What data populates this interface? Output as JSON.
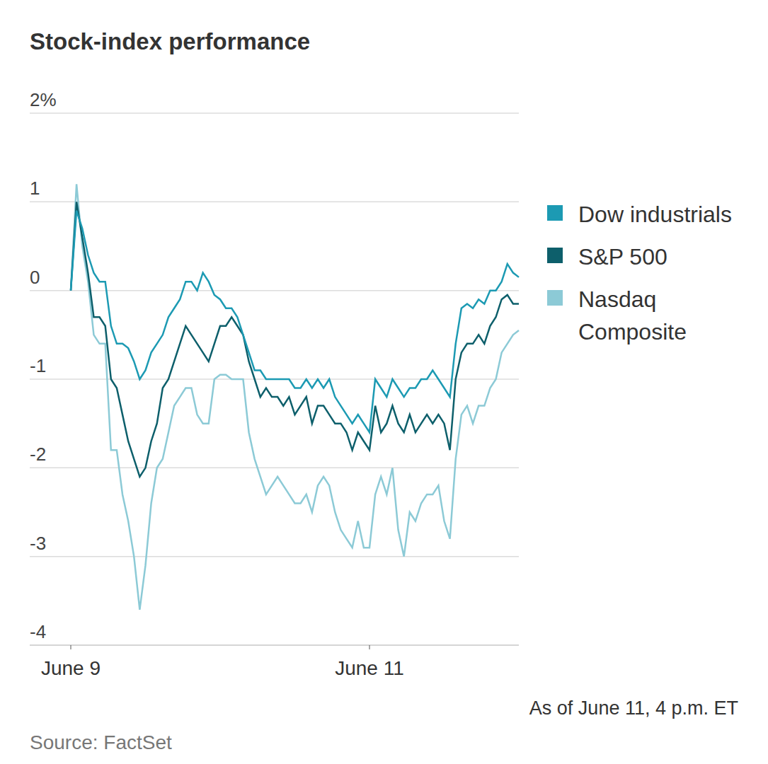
{
  "chart_data": {
    "type": "line",
    "title": "Stock-index performance",
    "note": "As of June 11, 4 p.m. ET",
    "source": "Source: FactSet",
    "categories": [
      "June 9",
      null,
      null,
      null,
      null,
      null,
      null,
      null,
      null,
      null,
      null,
      null,
      null,
      null,
      null,
      null,
      null,
      null,
      null,
      null,
      null,
      null,
      null,
      null,
      null,
      null,
      null,
      null,
      null,
      null,
      null,
      null,
      null,
      null,
      null,
      null,
      null,
      null,
      null,
      null,
      null,
      null,
      null,
      null,
      null,
      null,
      null,
      null,
      null,
      null,
      null,
      null,
      "June 11",
      null,
      null,
      null,
      null,
      null,
      null,
      null,
      null,
      null,
      null,
      null,
      null,
      null,
      null,
      null,
      null,
      null,
      null,
      null,
      null,
      null,
      null,
      null,
      null,
      null,
      null
    ],
    "series": [
      {
        "name": "Dow industrials",
        "color": "#1c9ab3",
        "values": [
          0,
          0.9,
          0.7,
          0.4,
          0.2,
          0.1,
          0.1,
          -0.4,
          -0.6,
          -0.6,
          -0.65,
          -0.8,
          -1.0,
          -0.9,
          -0.7,
          -0.6,
          -0.5,
          -0.3,
          -0.2,
          -0.1,
          0.1,
          0.1,
          0.0,
          0.2,
          0.1,
          -0.05,
          -0.1,
          -0.2,
          -0.2,
          -0.3,
          -0.5,
          -0.7,
          -0.9,
          -0.9,
          -1.0,
          -1.0,
          -1.0,
          -1.0,
          -1.0,
          -1.1,
          -1.1,
          -1.0,
          -1.1,
          -1.0,
          -1.1,
          -1.0,
          -1.2,
          -1.3,
          -1.4,
          -1.5,
          -1.4,
          -1.5,
          -1.6,
          -1.0,
          -1.1,
          -1.2,
          -1.0,
          -1.1,
          -1.2,
          -1.1,
          -1.1,
          -1.0,
          -1.0,
          -0.9,
          -1.0,
          -1.1,
          -1.2,
          -0.6,
          -0.2,
          -0.15,
          -0.2,
          -0.1,
          -0.15,
          0.0,
          0.0,
          0.1,
          0.3,
          0.2,
          0.15
        ]
      },
      {
        "name": "S&P 500",
        "color": "#0d5f6b",
        "values": [
          0,
          1.0,
          0.6,
          0.2,
          -0.3,
          -0.3,
          -0.4,
          -1.0,
          -1.1,
          -1.4,
          -1.7,
          -1.9,
          -2.1,
          -2.0,
          -1.7,
          -1.5,
          -1.1,
          -1.0,
          -0.8,
          -0.6,
          -0.4,
          -0.5,
          -0.6,
          -0.7,
          -0.8,
          -0.6,
          -0.4,
          -0.4,
          -0.3,
          -0.4,
          -0.5,
          -0.8,
          -1.0,
          -1.2,
          -1.1,
          -1.2,
          -1.2,
          -1.3,
          -1.2,
          -1.4,
          -1.3,
          -1.2,
          -1.5,
          -1.3,
          -1.3,
          -1.4,
          -1.5,
          -1.5,
          -1.6,
          -1.8,
          -1.6,
          -1.7,
          -1.8,
          -1.3,
          -1.6,
          -1.5,
          -1.3,
          -1.5,
          -1.6,
          -1.4,
          -1.6,
          -1.5,
          -1.4,
          -1.5,
          -1.4,
          -1.5,
          -1.8,
          -1.0,
          -0.7,
          -0.6,
          -0.6,
          -0.5,
          -0.6,
          -0.4,
          -0.3,
          -0.1,
          -0.05,
          -0.15,
          -0.15
        ]
      },
      {
        "name": "Nasdaq Composite",
        "color": "#8ccad6",
        "values": [
          0,
          1.2,
          0.5,
          0.1,
          -0.5,
          -0.6,
          -0.6,
          -1.8,
          -1.8,
          -2.3,
          -2.6,
          -3.0,
          -3.6,
          -3.1,
          -2.4,
          -2.0,
          -1.9,
          -1.6,
          -1.3,
          -1.2,
          -1.1,
          -1.1,
          -1.4,
          -1.5,
          -1.5,
          -1.0,
          -0.95,
          -0.95,
          -1.0,
          -1.0,
          -1.0,
          -1.6,
          -1.9,
          -2.1,
          -2.3,
          -2.2,
          -2.1,
          -2.2,
          -2.3,
          -2.4,
          -2.4,
          -2.3,
          -2.5,
          -2.2,
          -2.1,
          -2.2,
          -2.5,
          -2.7,
          -2.8,
          -2.9,
          -2.6,
          -2.9,
          -2.9,
          -2.3,
          -2.1,
          -2.3,
          -2.0,
          -2.7,
          -3.0,
          -2.5,
          -2.6,
          -2.4,
          -2.3,
          -2.3,
          -2.2,
          -2.6,
          -2.8,
          -1.9,
          -1.4,
          -1.3,
          -1.5,
          -1.3,
          -1.3,
          -1.1,
          -1.0,
          -0.7,
          -0.6,
          -0.5,
          -0.45
        ]
      }
    ],
    "ylim": [
      -4,
      2
    ],
    "yticks": [
      -4,
      -3,
      -2,
      -1,
      0,
      1,
      {
        "value": 2,
        "label": "2%"
      }
    ],
    "grid": true,
    "legend": "right"
  }
}
